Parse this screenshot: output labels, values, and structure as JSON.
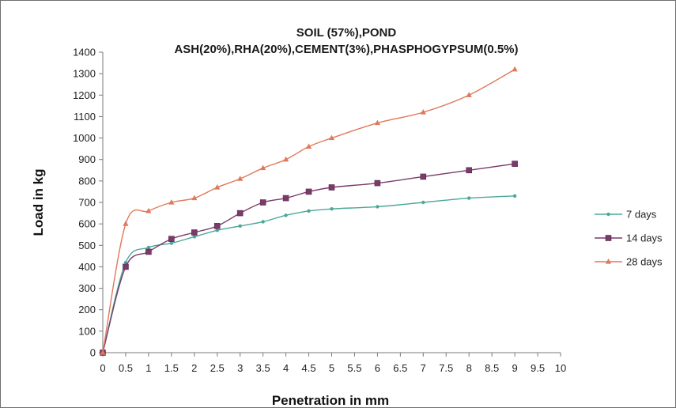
{
  "chart_data": {
    "type": "line",
    "title_line1": "SOIL (57%),POND",
    "title_line2": "ASH(20%),RHA(20%),CEMENT(3%),PHASPHOGYPSUM(0.5%)",
    "xlabel": "Penetration  in  mm",
    "ylabel": "Load in kg",
    "xlim": [
      0,
      10
    ],
    "ylim": [
      0,
      1400
    ],
    "x_ticks": [
      "0",
      "0.5",
      "1",
      "1.5",
      "2",
      "2.5",
      "3",
      "3.5",
      "4",
      "4.5",
      "5",
      "5.5",
      "6",
      "6.5",
      "7",
      "7.5",
      "8",
      "8.5",
      "9",
      "9.5",
      "10"
    ],
    "y_ticks": [
      "0",
      "100",
      "200",
      "300",
      "400",
      "500",
      "600",
      "700",
      "800",
      "900",
      "1000",
      "1100",
      "1200",
      "1300",
      "1400"
    ],
    "grid": false,
    "legend_position": "right",
    "series": [
      {
        "name": "7 days",
        "color": "#4aa89a",
        "marker": "dot",
        "points": [
          [
            0,
            0
          ],
          [
            0.5,
            420
          ],
          [
            1,
            490
          ],
          [
            1.5,
            510
          ],
          [
            2,
            540
          ],
          [
            2.5,
            570
          ],
          [
            3,
            590
          ],
          [
            3.5,
            610
          ],
          [
            4,
            640
          ],
          [
            4.5,
            660
          ],
          [
            5,
            670
          ],
          [
            6,
            680
          ],
          [
            7,
            700
          ],
          [
            8,
            720
          ],
          [
            9,
            730
          ]
        ]
      },
      {
        "name": "14 days",
        "color": "#7a3a6a",
        "marker": "square",
        "points": [
          [
            0,
            0
          ],
          [
            0.5,
            400
          ],
          [
            1,
            470
          ],
          [
            1.5,
            530
          ],
          [
            2,
            560
          ],
          [
            2.5,
            590
          ],
          [
            3,
            650
          ],
          [
            3.5,
            700
          ],
          [
            4,
            720
          ],
          [
            4.5,
            750
          ],
          [
            5,
            770
          ],
          [
            6,
            790
          ],
          [
            7,
            820
          ],
          [
            8,
            850
          ],
          [
            9,
            880
          ]
        ]
      },
      {
        "name": "28 days",
        "color": "#e0785a",
        "marker": "triangle",
        "points": [
          [
            0,
            0
          ],
          [
            0.5,
            600
          ],
          [
            1,
            660
          ],
          [
            1.5,
            700
          ],
          [
            2,
            720
          ],
          [
            2.5,
            770
          ],
          [
            3,
            810
          ],
          [
            3.5,
            860
          ],
          [
            4,
            900
          ],
          [
            4.5,
            960
          ],
          [
            5,
            1000
          ],
          [
            6,
            1070
          ],
          [
            7,
            1120
          ],
          [
            8,
            1200
          ],
          [
            9,
            1320
          ]
        ]
      }
    ]
  }
}
